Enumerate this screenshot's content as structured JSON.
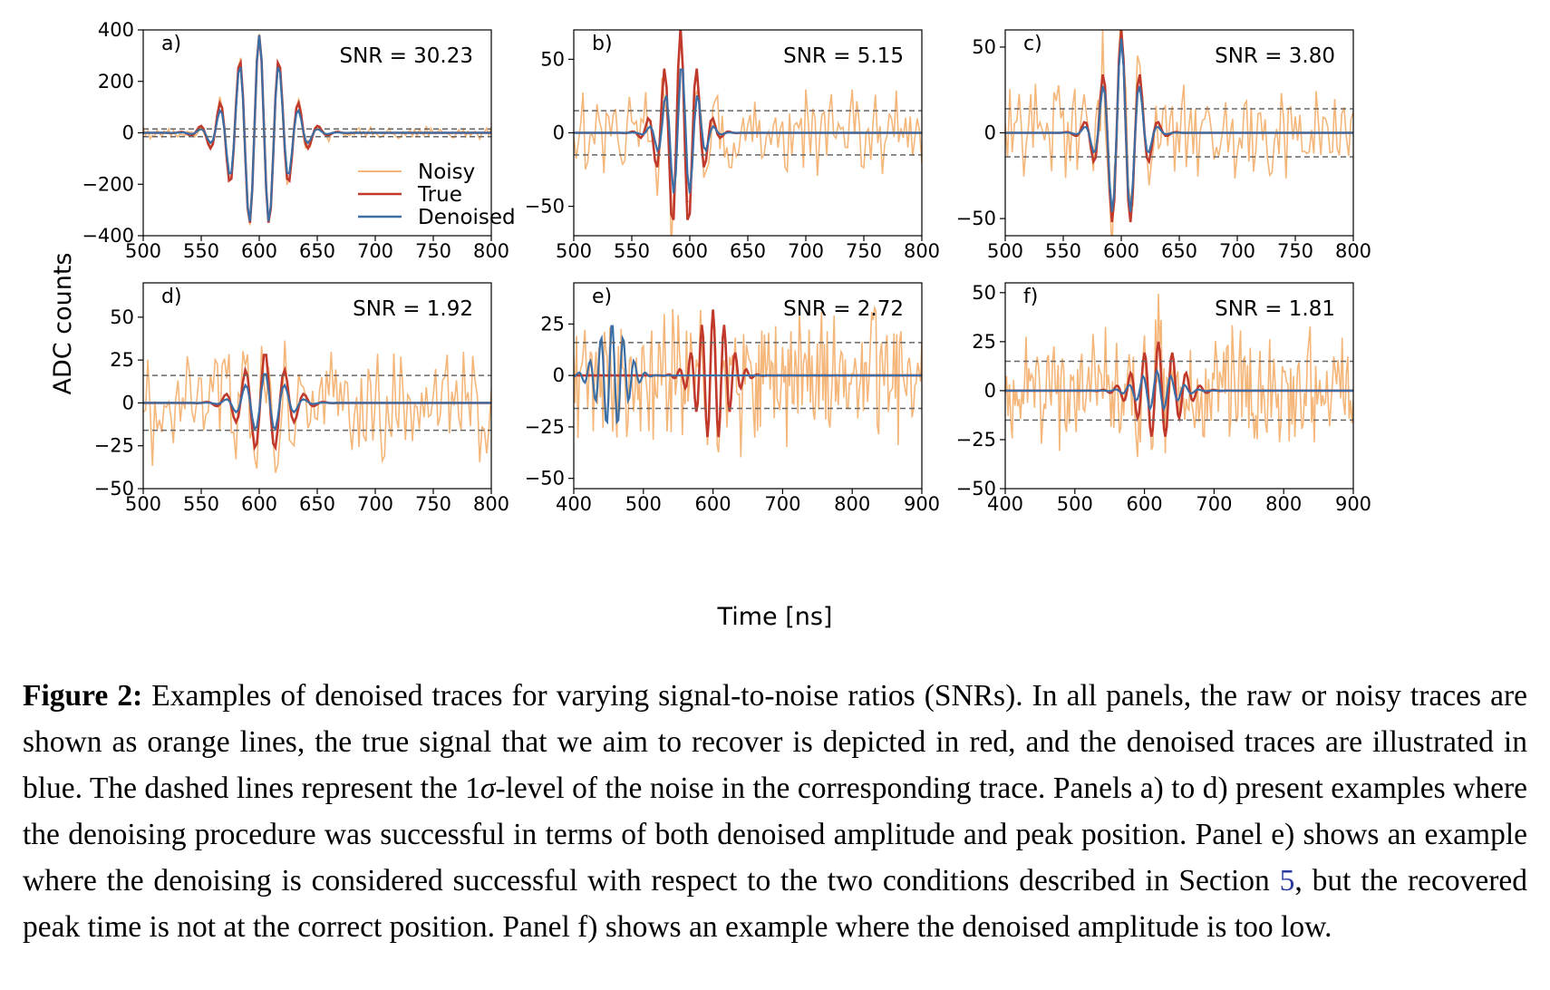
{
  "figure": {
    "y_axis_label": "ADC counts",
    "x_axis_label": "Time [ns]",
    "legend": [
      {
        "label": "Noisy",
        "color": "#f5b67a"
      },
      {
        "label": "True",
        "color": "#c0392b"
      },
      {
        "label": "Denoised",
        "color": "#3a6ea5"
      }
    ],
    "colors": {
      "noisy": "#f5b67a",
      "true": "#c0392b",
      "denoised": "#3a6ea5",
      "sigma": "#666666"
    }
  },
  "chart_data": [
    {
      "type": "line",
      "label": "a)",
      "snr_text": "SNR = 30.23",
      "xlim": [
        500,
        800
      ],
      "ylim": [
        -400,
        400
      ],
      "xticks": [
        500,
        550,
        600,
        650,
        700,
        750,
        800
      ],
      "yticks": [
        -400,
        -200,
        0,
        200,
        400
      ],
      "sigma": 15,
      "true_amp": 380,
      "true_center": 600,
      "den_amp": 380,
      "den_center": 600,
      "noise_amp": 18,
      "period": 17,
      "decay": 22,
      "tail": 1.0,
      "seed": 11,
      "series": [
        "Noisy",
        "True",
        "Denoised"
      ]
    },
    {
      "type": "line",
      "label": "b)",
      "snr_text": "SNR = 5.15",
      "xlim": [
        500,
        800
      ],
      "ylim": [
        -70,
        70
      ],
      "xticks": [
        500,
        550,
        600,
        650,
        700,
        750,
        800
      ],
      "yticks": [
        -50,
        0,
        50
      ],
      "sigma": 15,
      "true_amp": 72,
      "true_center": 592,
      "den_amp": 48,
      "den_center": 593,
      "noise_amp": 22,
      "period": 14,
      "decay": 14,
      "tail": 1.0,
      "seed": 23,
      "series": [
        "Noisy",
        "True",
        "Denoised"
      ]
    },
    {
      "type": "line",
      "label": "c)",
      "snr_text": "SNR = 3.80",
      "xlim": [
        500,
        800
      ],
      "ylim": [
        -60,
        60
      ],
      "xticks": [
        500,
        550,
        600,
        650,
        700,
        750,
        800
      ],
      "yticks": [
        -50,
        0,
        50
      ],
      "sigma": 14,
      "true_amp": 60,
      "true_center": 600,
      "den_amp": 55,
      "den_center": 600,
      "noise_amp": 21,
      "period": 16,
      "decay": 15,
      "tail": 1.0,
      "seed": 37,
      "series": [
        "Noisy",
        "True",
        "Denoised"
      ]
    },
    {
      "type": "line",
      "label": "d)",
      "snr_text": "SNR = 1.92",
      "xlim": [
        500,
        800
      ],
      "ylim": [
        -50,
        70
      ],
      "xticks": [
        500,
        550,
        600,
        650,
        700,
        750,
        800
      ],
      "yticks": [
        -50,
        -25,
        0,
        25,
        50
      ],
      "sigma": 16,
      "true_amp": 30,
      "true_center": 605,
      "den_amp": 18,
      "den_center": 605,
      "noise_amp": 24,
      "period": 17,
      "decay": 18,
      "tail": 1.0,
      "seed": 41,
      "series": [
        "Noisy",
        "True",
        "Denoised"
      ]
    },
    {
      "type": "line",
      "label": "e)",
      "snr_text": "SNR = 2.72",
      "xlim": [
        400,
        900
      ],
      "ylim": [
        -55,
        45
      ],
      "xticks": [
        400,
        500,
        600,
        700,
        800,
        900
      ],
      "yticks": [
        -50,
        -25,
        0,
        25
      ],
      "sigma": 16,
      "true_amp": 32,
      "true_center": 600,
      "den_amp": 26,
      "den_center": 455,
      "noise_amp": 24,
      "period": 16,
      "decay": 22,
      "tail": 1.0,
      "seed": 53,
      "series": [
        "Noisy",
        "True",
        "Denoised"
      ]
    },
    {
      "type": "line",
      "label": "f)",
      "snr_text": "SNR = 1.81",
      "xlim": [
        400,
        900
      ],
      "ylim": [
        -50,
        55
      ],
      "xticks": [
        400,
        500,
        600,
        700,
        800,
        900
      ],
      "yticks": [
        -50,
        -25,
        0,
        25,
        50
      ],
      "sigma": 15,
      "true_amp": 25,
      "true_center": 620,
      "den_amp": 10,
      "den_center": 618,
      "noise_amp": 22,
      "period": 20,
      "decay": 28,
      "tail": 1.0,
      "seed": 67,
      "series": [
        "Noisy",
        "True",
        "Denoised"
      ]
    }
  ],
  "caption": {
    "label": "Figure 2:",
    "part1": " Examples of denoised traces for varying signal-to-noise ratios (SNRs). In all panels, the raw or noisy traces are shown as orange lines, the true signal that we aim to recover is depicted in red, and the denoised traces are illustrated in blue. The dashed lines represent the 1",
    "sigma_symbol": "σ",
    "part2": "-level of the noise in the corresponding trace. Panels a) to d) present examples where the denoising procedure was successful in terms of both denoised amplitude and peak position. Panel e) shows an example where the denoising is considered successful with respect to the two conditions described in Section ",
    "section_ref": "5",
    "part3": ", but the recovered peak time is not at the correct position. Panel f) shows an example where the denoised amplitude is too low."
  }
}
